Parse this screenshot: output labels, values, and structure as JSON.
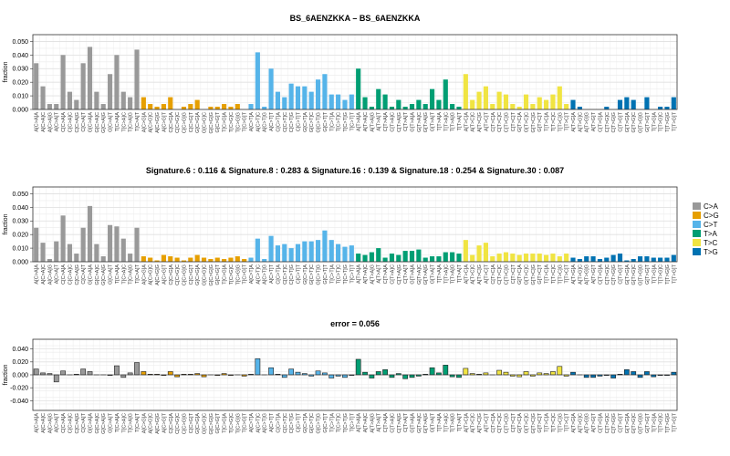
{
  "colors": {
    "C>A": "#999999",
    "C>G": "#E69F00",
    "C>T": "#56B4E9",
    "T>A": "#009E73",
    "T>C": "#F0E442",
    "T>G": "#0072B2"
  },
  "legend": {
    "items": [
      {
        "label": "C>A",
        "color": "#999999"
      },
      {
        "label": "C>G",
        "color": "#E69F00"
      },
      {
        "label": "C>T",
        "color": "#56B4E9"
      },
      {
        "label": "T>A",
        "color": "#009E73"
      },
      {
        "label": "T>C",
        "color": "#F0E442"
      },
      {
        "label": "T>G",
        "color": "#0072B2"
      }
    ]
  },
  "chart_data": [
    {
      "type": "bar",
      "title": "BS_6AENZKKA – BS_6AENZKKA",
      "ylabel": "fraction",
      "ylim": [
        0,
        0.055
      ],
      "yticks": [
        "0.000",
        "0.010",
        "0.020",
        "0.030",
        "0.040",
        "0.050"
      ],
      "ytick_values": [
        0,
        0.01,
        0.02,
        0.03,
        0.04,
        0.05
      ],
      "grid": true,
      "categories": [
        "A[C>A]A",
        "A[C>A]C",
        "A[C>A]G",
        "A[C>A]T",
        "C[C>A]A",
        "C[C>A]C",
        "C[C>A]G",
        "C[C>A]T",
        "G[C>A]A",
        "G[C>A]C",
        "G[C>A]G",
        "G[C>A]T",
        "T[C>A]A",
        "T[C>A]C",
        "T[C>A]G",
        "T[C>A]T",
        "A[C>G]A",
        "A[C>G]C",
        "A[C>G]G",
        "A[C>G]T",
        "C[C>G]A",
        "C[C>G]C",
        "C[C>G]G",
        "C[C>G]T",
        "G[C>G]A",
        "G[C>G]C",
        "G[C>G]G",
        "G[C>G]T",
        "T[C>G]A",
        "T[C>G]C",
        "T[C>G]G",
        "T[C>G]T",
        "A[C>T]A",
        "A[C>T]C",
        "A[C>T]G",
        "A[C>T]T",
        "C[C>T]A",
        "C[C>T]C",
        "C[C>T]G",
        "C[C>T]T",
        "G[C>T]A",
        "G[C>T]C",
        "G[C>T]G",
        "G[C>T]T",
        "T[C>T]A",
        "T[C>T]C",
        "T[C>T]G",
        "T[C>T]T",
        "A[T>A]A",
        "A[T>A]C",
        "A[T>A]G",
        "A[T>A]T",
        "C[T>A]A",
        "C[T>A]C",
        "C[T>A]G",
        "C[T>A]T",
        "G[T>A]A",
        "G[T>A]C",
        "G[T>A]G",
        "G[T>A]T",
        "T[T>A]A",
        "T[T>A]C",
        "T[T>A]G",
        "T[T>A]T",
        "A[T>C]A",
        "A[T>C]C",
        "A[T>C]G",
        "A[T>C]T",
        "C[T>C]A",
        "C[T>C]C",
        "C[T>C]G",
        "C[T>C]T",
        "G[T>C]A",
        "G[T>C]C",
        "G[T>C]G",
        "G[T>C]T",
        "T[T>C]A",
        "T[T>C]C",
        "T[T>C]G",
        "T[T>C]T",
        "A[T>G]A",
        "A[T>G]C",
        "A[T>G]G",
        "A[T>G]T",
        "C[T>G]A",
        "C[T>G]C",
        "C[T>G]G",
        "C[T>G]T",
        "G[T>G]A",
        "G[T>G]C",
        "G[T>G]G",
        "G[T>G]T",
        "T[T>G]A",
        "T[T>G]C",
        "T[T>G]G",
        "T[T>G]T"
      ],
      "values": [
        0.034,
        0.017,
        0.004,
        0.004,
        0.04,
        0.013,
        0.007,
        0.034,
        0.046,
        0.013,
        0.004,
        0.026,
        0.04,
        0.013,
        0.009,
        0.044,
        0.009,
        0.004,
        0.002,
        0.004,
        0.009,
        0.0,
        0.002,
        0.004,
        0.007,
        0.0,
        0.002,
        0.002,
        0.004,
        0.002,
        0.004,
        0.0,
        0.004,
        0.042,
        0.002,
        0.03,
        0.013,
        0.009,
        0.019,
        0.017,
        0.017,
        0.013,
        0.022,
        0.026,
        0.011,
        0.011,
        0.007,
        0.011,
        0.03,
        0.009,
        0.002,
        0.015,
        0.011,
        0.002,
        0.007,
        0.002,
        0.004,
        0.007,
        0.004,
        0.015,
        0.007,
        0.022,
        0.004,
        0.002,
        0.026,
        0.007,
        0.013,
        0.017,
        0.004,
        0.013,
        0.011,
        0.004,
        0.002,
        0.011,
        0.004,
        0.009,
        0.007,
        0.011,
        0.017,
        0.004,
        0.007,
        0.002,
        0.0,
        0.0,
        0.0,
        0.002,
        0.0,
        0.007,
        0.009,
        0.007,
        0.0,
        0.009,
        0.0,
        0.002,
        0.002,
        0.009
      ]
    },
    {
      "type": "bar",
      "title": "Signature.6 : 0.116 & Signature.8 : 0.283 & Signature.16 : 0.139 & Signature.18 : 0.254 & Signature.30 : 0.087",
      "ylabel": "fraction",
      "ylim": [
        0,
        0.055
      ],
      "yticks": [
        "0.000",
        "0.010",
        "0.020",
        "0.030",
        "0.040",
        "0.050"
      ],
      "ytick_values": [
        0,
        0.01,
        0.02,
        0.03,
        0.04,
        0.05
      ],
      "grid": true,
      "values": [
        0.025,
        0.014,
        0.002,
        0.015,
        0.034,
        0.013,
        0.006,
        0.025,
        0.041,
        0.013,
        0.004,
        0.027,
        0.026,
        0.017,
        0.006,
        0.025,
        0.004,
        0.003,
        0.001,
        0.005,
        0.004,
        0.003,
        0.001,
        0.003,
        0.005,
        0.003,
        0.002,
        0.003,
        0.002,
        0.003,
        0.004,
        0.002,
        0.003,
        0.017,
        0.002,
        0.019,
        0.012,
        0.013,
        0.01,
        0.013,
        0.015,
        0.015,
        0.016,
        0.023,
        0.016,
        0.013,
        0.011,
        0.012,
        0.006,
        0.005,
        0.007,
        0.01,
        0.003,
        0.006,
        0.005,
        0.008,
        0.008,
        0.009,
        0.003,
        0.004,
        0.004,
        0.007,
        0.007,
        0.006,
        0.016,
        0.005,
        0.012,
        0.014,
        0.004,
        0.006,
        0.007,
        0.006,
        0.005,
        0.006,
        0.006,
        0.006,
        0.005,
        0.006,
        0.004,
        0.006,
        0.003,
        0.002,
        0.004,
        0.004,
        0.002,
        0.003,
        0.005,
        0.006,
        0.001,
        0.002,
        0.004,
        0.004,
        0.003,
        0.003,
        0.003,
        0.005
      ]
    },
    {
      "type": "bar",
      "title": "error = 0.056",
      "ylabel": "fraction",
      "ylim": [
        -0.055,
        0.055
      ],
      "yticks": [
        "-0.040",
        "-0.020",
        "0.000",
        "0.020",
        "0.040"
      ],
      "ytick_values": [
        -0.04,
        -0.02,
        0,
        0.02,
        0.04
      ],
      "grid": true,
      "values": [
        0.009,
        0.003,
        0.002,
        -0.011,
        0.006,
        0.0,
        0.001,
        0.009,
        0.005,
        0.0,
        0.0,
        -0.001,
        0.014,
        -0.004,
        0.003,
        0.019,
        0.005,
        0.001,
        0.001,
        -0.001,
        0.005,
        -0.003,
        0.001,
        0.001,
        0.002,
        -0.003,
        0.0,
        -0.001,
        0.002,
        -0.001,
        0.0,
        -0.002,
        0.001,
        0.025,
        0.0,
        0.011,
        0.001,
        -0.004,
        0.009,
        0.004,
        0.002,
        -0.002,
        0.006,
        0.003,
        -0.005,
        -0.002,
        -0.004,
        -0.001,
        0.024,
        0.004,
        -0.005,
        0.005,
        0.008,
        -0.004,
        0.002,
        -0.006,
        -0.004,
        -0.002,
        0.001,
        0.011,
        0.003,
        0.015,
        -0.003,
        -0.004,
        0.01,
        0.002,
        0.001,
        0.003,
        0.0,
        0.007,
        0.004,
        -0.002,
        -0.003,
        0.005,
        -0.002,
        0.003,
        0.002,
        0.005,
        0.013,
        -0.002,
        0.004,
        0.0,
        -0.004,
        -0.004,
        -0.002,
        -0.001,
        -0.005,
        0.001,
        0.008,
        0.005,
        -0.004,
        0.005,
        -0.003,
        -0.001,
        -0.001,
        0.004
      ]
    }
  ]
}
